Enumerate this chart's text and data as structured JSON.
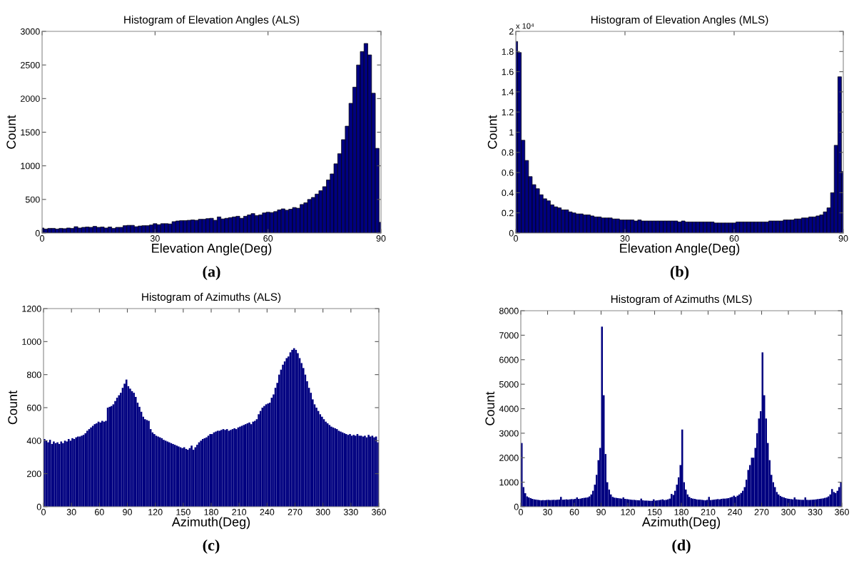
{
  "chart_data": [
    {
      "type": "histogram",
      "title": "Histogram of Elevation Angles (ALS)",
      "xlabel": "Elevation Angle(Deg)",
      "ylabel": "Count",
      "color": "#000080",
      "bins": [
        0,
        0.5,
        1.5,
        2.5,
        3.5,
        4.5,
        5.5,
        6.5,
        7.5,
        8.5,
        9.5,
        10.5,
        11.5,
        12.5,
        13.5,
        14.5,
        15.5,
        16.5,
        17.5,
        18.5,
        19.5,
        20.5,
        21.5,
        22.5,
        23.5,
        24.5,
        25.5,
        26.5,
        27.5,
        28.5,
        29.5,
        30.5,
        31.5,
        32.5,
        33.5,
        34.5,
        35.5,
        36.5,
        37.5,
        38.5,
        39.5,
        40.5,
        41.5,
        42.5,
        43.5,
        44.5,
        45.5,
        46.5,
        47.5,
        48.5,
        49.5,
        50.5,
        51.5,
        52.5,
        53.5,
        54.5,
        55.5,
        56.5,
        57.5,
        58.5,
        59.5,
        60.5,
        61.5,
        62.5,
        63.5,
        64.5,
        65.5,
        66.5,
        67.5,
        68.5,
        69.5,
        70.5,
        71.5,
        72.5,
        73.5,
        74.5,
        75.5,
        76.5,
        77.5,
        78.5,
        79.5,
        80.5,
        81.5,
        82.5,
        83.5,
        84.5,
        85.5,
        86.5,
        87.5,
        88.5,
        89.5,
        90
      ],
      "values": [
        75,
        60,
        70,
        70,
        60,
        70,
        65,
        75,
        70,
        95,
        75,
        85,
        90,
        85,
        100,
        85,
        90,
        75,
        90,
        70,
        85,
        85,
        110,
        115,
        115,
        95,
        105,
        110,
        110,
        120,
        140,
        125,
        140,
        140,
        135,
        170,
        180,
        185,
        185,
        190,
        195,
        190,
        205,
        205,
        215,
        220,
        190,
        240,
        210,
        220,
        230,
        240,
        250,
        220,
        250,
        270,
        290,
        260,
        270,
        300,
        310,
        305,
        320,
        345,
        360,
        340,
        355,
        380,
        370,
        425,
        450,
        500,
        530,
        580,
        630,
        690,
        790,
        880,
        1030,
        1180,
        1390,
        1590,
        1930,
        2170,
        2500,
        2700,
        2820,
        2650,
        2080,
        1260,
        160
      ],
      "xlim": [
        0,
        90
      ],
      "xticks": [
        0,
        30,
        60,
        90
      ],
      "ylim": [
        0,
        3000
      ],
      "yticks": [
        0,
        500,
        1000,
        1500,
        2000,
        2500,
        3000
      ],
      "annotations": [
        "(a)"
      ]
    },
    {
      "type": "histogram",
      "title": "Histogram of Elevation Angles (MLS)",
      "xlabel": "Elevation Angle(Deg)",
      "ylabel": "Count",
      "color": "#000080",
      "bins": [
        0,
        0.5,
        1.5,
        2.5,
        3.5,
        4.5,
        5.5,
        6.5,
        7.5,
        8.5,
        9.5,
        10.5,
        11.5,
        12.5,
        13.5,
        14.5,
        15.5,
        16.5,
        17.5,
        18.5,
        19.5,
        20.5,
        21.5,
        22.5,
        23.5,
        24.5,
        25.5,
        26.5,
        27.5,
        28.5,
        29.5,
        30.5,
        31.5,
        32.5,
        33.5,
        34.5,
        35.5,
        36.5,
        37.5,
        38.5,
        39.5,
        40.5,
        41.5,
        42.5,
        43.5,
        44.5,
        45.5,
        46.5,
        47.5,
        48.5,
        49.5,
        50.5,
        51.5,
        52.5,
        53.5,
        54.5,
        55.5,
        56.5,
        57.5,
        58.5,
        59.5,
        60.5,
        61.5,
        62.5,
        63.5,
        64.5,
        65.5,
        66.5,
        67.5,
        68.5,
        69.5,
        70.5,
        71.5,
        72.5,
        73.5,
        74.5,
        75.5,
        76.5,
        77.5,
        78.5,
        79.5,
        80.5,
        81.5,
        82.5,
        83.5,
        84.5,
        85.5,
        86.5,
        87.5,
        88.5,
        89.5,
        90
      ],
      "values": [
        1.9,
        1.79,
        0.92,
        0.72,
        0.56,
        0.48,
        0.44,
        0.38,
        0.34,
        0.32,
        0.28,
        0.26,
        0.25,
        0.23,
        0.23,
        0.21,
        0.2,
        0.19,
        0.19,
        0.18,
        0.18,
        0.17,
        0.16,
        0.16,
        0.15,
        0.15,
        0.15,
        0.14,
        0.14,
        0.13,
        0.13,
        0.13,
        0.13,
        0.12,
        0.13,
        0.12,
        0.12,
        0.12,
        0.12,
        0.12,
        0.12,
        0.12,
        0.12,
        0.12,
        0.12,
        0.11,
        0.12,
        0.11,
        0.11,
        0.11,
        0.11,
        0.11,
        0.11,
        0.11,
        0.11,
        0.1,
        0.1,
        0.1,
        0.1,
        0.1,
        0.1,
        0.11,
        0.11,
        0.11,
        0.11,
        0.11,
        0.11,
        0.11,
        0.11,
        0.11,
        0.12,
        0.12,
        0.12,
        0.12,
        0.13,
        0.13,
        0.13,
        0.14,
        0.14,
        0.15,
        0.15,
        0.16,
        0.16,
        0.17,
        0.18,
        0.21,
        0.25,
        0.4,
        0.87,
        1.55,
        0.61
      ],
      "xlim": [
        0,
        90
      ],
      "xticks": [
        0,
        30,
        60,
        90
      ],
      "ylim": [
        0,
        2
      ],
      "yticks": [
        0,
        0.2,
        0.4,
        0.6,
        0.8,
        1,
        1.2,
        1.4,
        1.6,
        1.8,
        2
      ],
      "annotations": [
        "x 10⁴",
        "(b)"
      ]
    },
    {
      "type": "histogram",
      "title": "Histogram of Azimuths (ALS)",
      "xlabel": "Azimuth(Deg)",
      "ylabel": "Count",
      "color": "#000080",
      "bins": [
        0,
        2,
        4,
        6,
        8,
        10,
        12,
        14,
        16,
        18,
        20,
        22,
        24,
        26,
        28,
        30,
        32,
        34,
        36,
        38,
        40,
        42,
        44,
        46,
        48,
        50,
        52,
        54,
        56,
        58,
        60,
        62,
        64,
        66,
        68,
        70,
        72,
        74,
        76,
        78,
        80,
        82,
        84,
        86,
        88,
        90,
        92,
        94,
        96,
        98,
        100,
        102,
        104,
        106,
        108,
        110,
        112,
        114,
        116,
        118,
        120,
        122,
        124,
        126,
        128,
        130,
        132,
        134,
        136,
        138,
        140,
        142,
        144,
        146,
        148,
        150,
        152,
        154,
        156,
        158,
        160,
        162,
        164,
        166,
        168,
        170,
        172,
        174,
        176,
        178,
        180,
        182,
        184,
        186,
        188,
        190,
        192,
        194,
        196,
        198,
        200,
        202,
        204,
        206,
        208,
        210,
        212,
        214,
        216,
        218,
        220,
        222,
        224,
        226,
        228,
        230,
        232,
        234,
        236,
        238,
        240,
        242,
        244,
        246,
        248,
        250,
        252,
        254,
        256,
        258,
        260,
        262,
        264,
        266,
        268,
        270,
        272,
        274,
        276,
        278,
        280,
        282,
        284,
        286,
        288,
        290,
        292,
        294,
        296,
        298,
        300,
        302,
        304,
        306,
        308,
        310,
        312,
        314,
        316,
        318,
        320,
        322,
        324,
        326,
        328,
        330,
        332,
        334,
        336,
        338,
        340,
        342,
        344,
        346,
        348,
        350,
        352,
        354,
        356,
        358,
        360
      ],
      "values": [
        410,
        400,
        390,
        405,
        380,
        395,
        385,
        390,
        380,
        395,
        385,
        400,
        395,
        410,
        400,
        415,
        410,
        420,
        425,
        425,
        430,
        435,
        445,
        460,
        470,
        480,
        490,
        500,
        505,
        515,
        510,
        520,
        515,
        520,
        600,
        605,
        610,
        620,
        640,
        660,
        675,
        690,
        720,
        745,
        770,
        730,
        715,
        700,
        690,
        665,
        630,
        605,
        575,
        545,
        530,
        525,
        520,
        470,
        450,
        440,
        430,
        425,
        420,
        415,
        405,
        400,
        395,
        390,
        385,
        380,
        375,
        370,
        365,
        360,
        355,
        360,
        350,
        345,
        355,
        370,
        345,
        360,
        375,
        390,
        400,
        410,
        415,
        420,
        430,
        440,
        440,
        450,
        455,
        460,
        460,
        465,
        470,
        465,
        470,
        460,
        465,
        470,
        475,
        470,
        480,
        485,
        490,
        495,
        500,
        505,
        510,
        500,
        515,
        520,
        530,
        560,
        580,
        600,
        610,
        620,
        625,
        630,
        660,
        680,
        720,
        750,
        800,
        830,
        860,
        880,
        900,
        910,
        935,
        950,
        960,
        950,
        930,
        900,
        870,
        840,
        800,
        760,
        720,
        690,
        650,
        620,
        600,
        580,
        560,
        545,
        530,
        515,
        505,
        495,
        485,
        480,
        475,
        470,
        460,
        455,
        450,
        445,
        440,
        435,
        440,
        430,
        435,
        430,
        440,
        430,
        430,
        425,
        430,
        420,
        435,
        425,
        430,
        420,
        425,
        390
      ],
      "xlim": [
        0,
        360
      ],
      "xticks": [
        0,
        30,
        60,
        90,
        120,
        150,
        180,
        210,
        240,
        270,
        300,
        330,
        360
      ],
      "ylim": [
        0,
        1200
      ],
      "yticks": [
        0,
        200,
        400,
        600,
        800,
        1000,
        1200
      ],
      "annotations": [
        "(c)"
      ]
    },
    {
      "type": "histogram",
      "title": "Histogram of Azimuths (MLS)",
      "xlabel": "Azimuth(Deg)",
      "ylabel": "Count",
      "color": "#000080",
      "bins": [
        0,
        2,
        4,
        6,
        8,
        10,
        12,
        14,
        16,
        18,
        20,
        22,
        24,
        26,
        28,
        30,
        32,
        34,
        36,
        38,
        40,
        42,
        44,
        46,
        48,
        50,
        52,
        54,
        56,
        58,
        60,
        62,
        64,
        66,
        68,
        70,
        72,
        74,
        76,
        78,
        80,
        82,
        84,
        86,
        88,
        90,
        92,
        94,
        96,
        98,
        100,
        102,
        104,
        106,
        108,
        110,
        112,
        114,
        116,
        118,
        120,
        122,
        124,
        126,
        128,
        130,
        132,
        134,
        136,
        138,
        140,
        142,
        144,
        146,
        148,
        150,
        152,
        154,
        156,
        158,
        160,
        162,
        164,
        166,
        168,
        170,
        172,
        174,
        176,
        178,
        180,
        182,
        184,
        186,
        188,
        190,
        192,
        194,
        196,
        198,
        200,
        202,
        204,
        206,
        208,
        210,
        212,
        214,
        216,
        218,
        220,
        222,
        224,
        226,
        228,
        230,
        232,
        234,
        236,
        238,
        240,
        242,
        244,
        246,
        248,
        250,
        252,
        254,
        256,
        258,
        260,
        262,
        264,
        266,
        268,
        270,
        272,
        274,
        276,
        278,
        280,
        282,
        284,
        286,
        288,
        290,
        292,
        294,
        296,
        298,
        300,
        302,
        304,
        306,
        308,
        310,
        312,
        314,
        316,
        318,
        320,
        322,
        324,
        326,
        328,
        330,
        332,
        334,
        336,
        338,
        340,
        342,
        344,
        346,
        348,
        350,
        352,
        354,
        356,
        358,
        360
      ],
      "values": [
        2600,
        800,
        550,
        420,
        380,
        350,
        320,
        300,
        290,
        280,
        270,
        260,
        270,
        265,
        275,
        280,
        270,
        275,
        280,
        275,
        285,
        290,
        400,
        285,
        290,
        300,
        290,
        300,
        310,
        305,
        320,
        380,
        320,
        330,
        350,
        360,
        370,
        380,
        420,
        500,
        650,
        900,
        1300,
        1900,
        2400,
        7350,
        4550,
        2150,
        1000,
        700,
        500,
        400,
        370,
        360,
        350,
        340,
        330,
        380,
        320,
        310,
        300,
        290,
        280,
        280,
        270,
        265,
        260,
        330,
        260,
        250,
        250,
        245,
        240,
        240,
        300,
        250,
        260,
        270,
        280,
        300,
        270,
        280,
        300,
        330,
        520,
        480,
        650,
        900,
        1200,
        1700,
        3150,
        1000,
        700,
        500,
        400,
        350,
        330,
        320,
        300,
        290,
        290,
        280,
        270,
        260,
        280,
        400,
        270,
        280,
        290,
        300,
        310,
        300,
        320,
        330,
        330,
        340,
        350,
        380,
        400,
        450,
        400,
        450,
        500,
        560,
        650,
        800,
        1100,
        1500,
        1700,
        2000,
        2000,
        2400,
        3000,
        3600,
        3900,
        6300,
        4550,
        3600,
        2600,
        1900,
        1300,
        1000,
        800,
        600,
        500,
        440,
        400,
        380,
        350,
        330,
        320,
        310,
        300,
        380,
        300,
        290,
        285,
        280,
        280,
        380,
        280,
        275,
        280,
        285,
        290,
        300,
        310,
        320,
        330,
        340,
        360,
        380,
        420,
        500,
        720,
        600,
        560,
        650,
        800,
        1000
      ],
      "xlim": [
        0,
        360
      ],
      "xticks": [
        0,
        30,
        60,
        90,
        120,
        150,
        180,
        210,
        240,
        270,
        300,
        330,
        360
      ],
      "ylim": [
        0,
        8000
      ],
      "yticks": [
        0,
        1000,
        2000,
        3000,
        4000,
        5000,
        6000,
        7000,
        8000
      ],
      "annotations": [
        "(d)"
      ]
    }
  ]
}
